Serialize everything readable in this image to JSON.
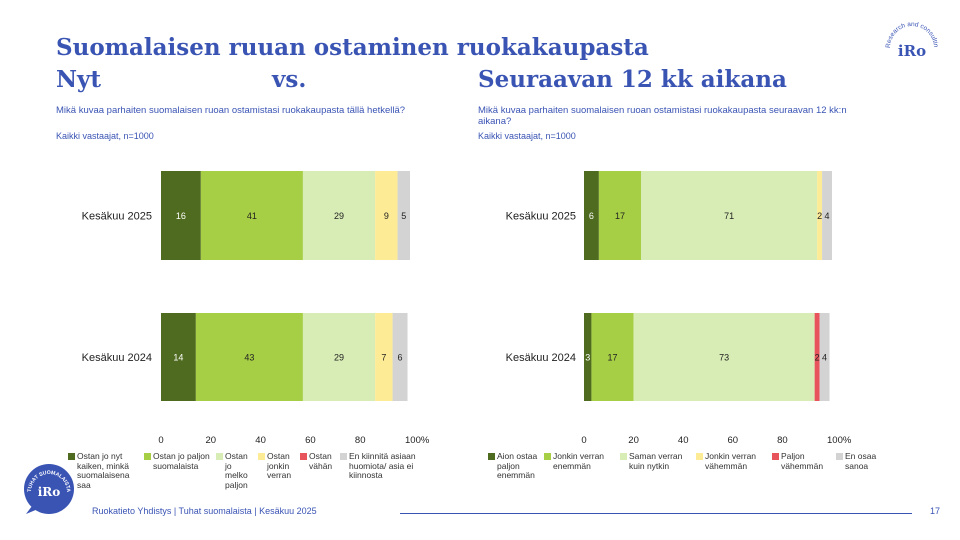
{
  "header": {
    "title_line1": "Suomalaisen ruuan ostaminen ruokakaupasta",
    "title_now": "Nyt",
    "title_vs": "vs.",
    "title_next": "Seuraavan 12 kk aikana"
  },
  "logo": {
    "brand": "iRo",
    "ring_text": "Research and consulting"
  },
  "badge": {
    "brand": "iRo",
    "ring_text": "TUHAT SUOMALAISTA"
  },
  "footer": {
    "source": "Ruokatieto Yhdistys | Tuhat suomalaista | Kesäkuu 2025",
    "page": "17"
  },
  "chart_data": [
    {
      "type": "bar",
      "orientation": "horizontal",
      "stacked": true,
      "question": "Mikä kuvaa parhaiten suomalaisen ruoan ostamistasi ruokakaupasta tällä hetkellä?",
      "base": "Kaikki vastaajat, n=1000",
      "categories": [
        "Kesäkuu 2025",
        "Kesäkuu 2024"
      ],
      "series": [
        {
          "name": "Ostan jo nyt kaiken, minkä suomalaisena saa",
          "color": "#4f6b1f",
          "values": [
            16,
            14
          ]
        },
        {
          "name": "Ostan jo paljon suomalaista",
          "color": "#a6cf45",
          "values": [
            41,
            43
          ]
        },
        {
          "name": "Ostan jo melko paljon",
          "color": "#d8ecb5",
          "values": [
            29,
            29
          ]
        },
        {
          "name": "Ostan jonkin verran",
          "color": "#fdeb96",
          "values": [
            9,
            7
          ]
        },
        {
          "name": "Ostan vähän",
          "color": "#e8545b",
          "values": [
            0,
            0
          ]
        },
        {
          "name": "En kiinnitä asiaan huomiota/ asia ei kiinnosta",
          "color": "#d3d3d3",
          "values": [
            5,
            6
          ]
        }
      ],
      "xlim": [
        0,
        100
      ],
      "xticks": [
        "0",
        "20",
        "40",
        "60",
        "80",
        "100%"
      ],
      "legend": "bottom"
    },
    {
      "type": "bar",
      "orientation": "horizontal",
      "stacked": true,
      "question": "Mikä kuvaa parhaiten suomalaisen ruoan ostamistasi ruokakaupasta seuraavan 12 kk:n aikana?",
      "base": "Kaikki vastaajat, n=1000",
      "categories": [
        "Kesäkuu 2025",
        "Kesäkuu 2024"
      ],
      "series": [
        {
          "name": "Aion ostaa paljon enemmän",
          "color": "#4f6b1f",
          "values": [
            6,
            3
          ]
        },
        {
          "name": "Jonkin verran enemmän",
          "color": "#a6cf45",
          "values": [
            17,
            17
          ]
        },
        {
          "name": "Saman verran kuin nytkin",
          "color": "#d8ecb5",
          "values": [
            71,
            73
          ]
        },
        {
          "name": "Jonkin verran vähemmän",
          "color": "#fdeb96",
          "values": [
            2,
            0
          ]
        },
        {
          "name": "Paljon vähemmän",
          "color": "#e8545b",
          "values": [
            0,
            2
          ]
        },
        {
          "name": "En osaa sanoa",
          "color": "#d3d3d3",
          "values": [
            4,
            4
          ]
        }
      ],
      "xlim": [
        0,
        100
      ],
      "xticks": [
        "0",
        "20",
        "40",
        "60",
        "80",
        "100%"
      ],
      "legend": "bottom"
    }
  ]
}
